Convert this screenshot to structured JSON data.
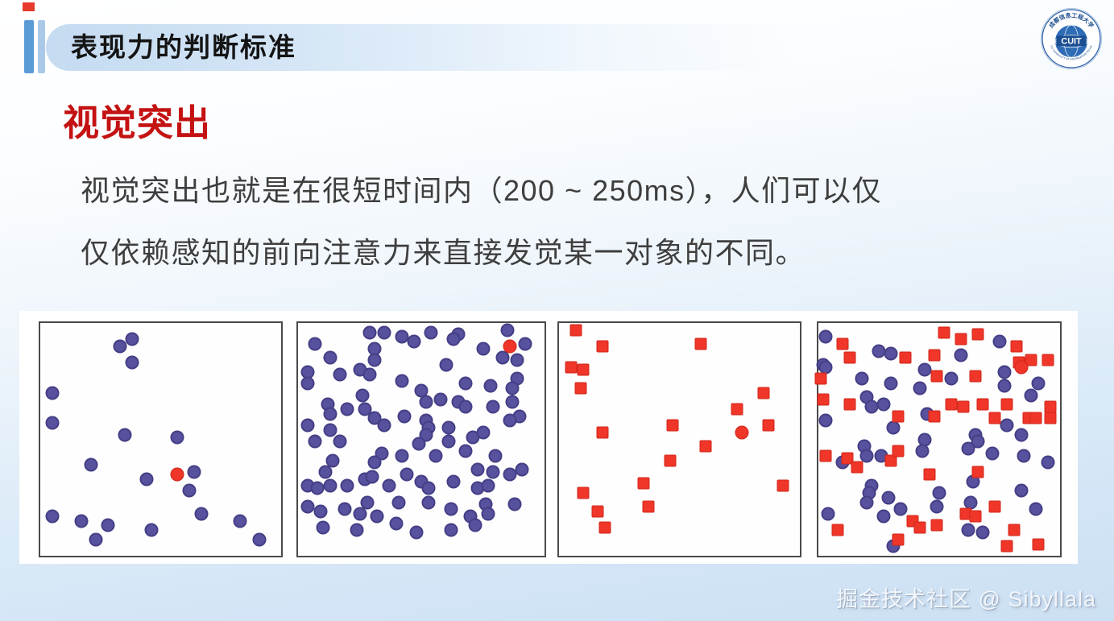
{
  "header": {
    "title": "表现力的判断标准"
  },
  "logo": {
    "abbr": "CUIT",
    "arc_top": "成都信息工程大学",
    "arc_bottom": "CHENGDU UNIVERSITY OF INFORMATION TECHNOLOGY"
  },
  "section": {
    "title": "视觉突出"
  },
  "body": {
    "lines": [
      "视觉突出也就是在很短时间内（200 ~ 250ms），人们可以仅",
      "仅依赖感知的前向注意力来直接发觉某一对象的不同。"
    ]
  },
  "watermark": {
    "text": "掘金技术社区 @ Sibyllala"
  },
  "colors": {
    "accent_bar_dark": "#5b9bd5",
    "accent_bar_light": "#aac9e8",
    "title_red": "#c41212",
    "dot_blue": "#57519e",
    "dot_red": "#ef3629",
    "logo_blue": "#2a5fa8"
  },
  "figure": {
    "panels": [
      {
        "label": "color-popout-sparse",
        "blue_circles": [
          [
            33,
            10
          ],
          [
            38,
            7
          ],
          [
            38,
            17
          ],
          [
            5,
            30
          ],
          [
            5,
            43
          ],
          [
            35,
            48
          ],
          [
            57,
            49
          ],
          [
            21,
            61
          ],
          [
            64,
            64
          ],
          [
            44,
            67
          ],
          [
            62,
            72
          ],
          [
            67,
            82
          ],
          [
            5,
            83
          ],
          [
            17,
            85
          ],
          [
            28,
            87
          ],
          [
            46,
            89
          ],
          [
            23,
            93
          ],
          [
            83,
            85
          ],
          [
            91,
            93
          ]
        ],
        "red_circles": [
          [
            57,
            65
          ]
        ],
        "red_squares": []
      },
      {
        "label": "color-popout-dense",
        "blue_circles": [
          [
            29,
            4
          ],
          [
            35,
            4
          ],
          [
            54,
            4
          ],
          [
            65,
            5
          ],
          [
            85,
            3
          ],
          [
            7,
            9
          ],
          [
            42,
            6
          ],
          [
            47,
            8
          ],
          [
            63,
            7
          ],
          [
            75,
            11
          ],
          [
            92,
            9
          ],
          [
            13,
            15
          ],
          [
            31,
            11
          ],
          [
            31,
            16
          ],
          [
            60,
            18
          ],
          [
            83,
            15
          ],
          [
            89,
            16
          ],
          [
            4,
            21
          ],
          [
            17,
            22
          ],
          [
            25,
            20
          ],
          [
            29,
            22
          ],
          [
            4,
            26
          ],
          [
            42,
            25
          ],
          [
            50,
            29
          ],
          [
            68,
            26
          ],
          [
            78,
            27
          ],
          [
            89,
            24
          ],
          [
            87,
            28
          ],
          [
            26,
            31
          ],
          [
            12,
            35
          ],
          [
            13,
            39
          ],
          [
            20,
            37
          ],
          [
            27,
            37
          ],
          [
            52,
            34
          ],
          [
            58,
            33
          ],
          [
            65,
            34
          ],
          [
            68,
            36
          ],
          [
            79,
            36
          ],
          [
            87,
            34
          ],
          [
            31,
            41
          ],
          [
            35,
            44
          ],
          [
            43,
            40
          ],
          [
            52,
            42
          ],
          [
            53,
            45
          ],
          [
            61,
            45
          ],
          [
            4,
            44
          ],
          [
            13,
            46
          ],
          [
            90,
            40
          ],
          [
            86,
            42
          ],
          [
            7,
            51
          ],
          [
            17,
            51
          ],
          [
            52,
            48
          ],
          [
            49,
            52
          ],
          [
            61,
            51
          ],
          [
            71,
            49
          ],
          [
            75,
            47
          ],
          [
            34,
            56
          ],
          [
            42,
            57
          ],
          [
            56,
            57
          ],
          [
            68,
            55
          ],
          [
            80,
            57
          ],
          [
            14,
            59
          ],
          [
            11,
            64
          ],
          [
            31,
            60
          ],
          [
            91,
            63
          ],
          [
            86,
            65
          ],
          [
            79,
            64
          ],
          [
            73,
            63
          ],
          [
            27,
            67
          ],
          [
            30,
            66
          ],
          [
            44,
            65
          ],
          [
            50,
            68
          ],
          [
            53,
            71
          ],
          [
            63,
            68
          ],
          [
            73,
            71
          ],
          [
            77,
            70
          ],
          [
            4,
            70
          ],
          [
            8,
            71
          ],
          [
            13,
            70
          ],
          [
            20,
            70
          ],
          [
            37,
            70
          ],
          [
            28,
            77
          ],
          [
            41,
            77
          ],
          [
            53,
            77
          ],
          [
            76,
            78
          ],
          [
            88,
            78
          ],
          [
            4,
            79
          ],
          [
            9,
            81
          ],
          [
            19,
            80
          ],
          [
            25,
            82
          ],
          [
            32,
            83
          ],
          [
            62,
            80
          ],
          [
            70,
            83
          ],
          [
            77,
            82
          ],
          [
            10,
            88
          ],
          [
            24,
            89
          ],
          [
            40,
            86
          ],
          [
            48,
            90
          ],
          [
            62,
            89
          ],
          [
            72,
            87
          ]
        ],
        "red_circles": [
          [
            86,
            10
          ]
        ],
        "red_squares": []
      },
      {
        "label": "shape-popout-squares",
        "blue_circles": [],
        "red_circles": [
          [
            76,
            47
          ]
        ],
        "red_squares": [
          [
            7,
            3
          ],
          [
            18,
            10
          ],
          [
            5,
            19
          ],
          [
            10,
            20
          ],
          [
            9,
            28
          ],
          [
            59,
            9
          ],
          [
            85,
            30
          ],
          [
            74,
            37
          ],
          [
            47,
            44
          ],
          [
            87,
            44
          ],
          [
            18,
            47
          ],
          [
            61,
            53
          ],
          [
            46,
            59
          ],
          [
            35,
            69
          ],
          [
            10,
            73
          ],
          [
            37,
            79
          ],
          [
            16,
            81
          ],
          [
            19,
            88
          ],
          [
            93,
            70
          ]
        ]
      },
      {
        "label": "conjunction-search",
        "blue_circles": [
          [
            3,
            6
          ],
          [
            25,
            12
          ],
          [
            30,
            13
          ],
          [
            59,
            14
          ],
          [
            75,
            8
          ],
          [
            2,
            18
          ],
          [
            3,
            19
          ],
          [
            18,
            24
          ],
          [
            30,
            26
          ],
          [
            44,
            20
          ],
          [
            55,
            24
          ],
          [
            77,
            21
          ],
          [
            77,
            27
          ],
          [
            91,
            26
          ],
          [
            88,
            31
          ],
          [
            20,
            32
          ],
          [
            22,
            36
          ],
          [
            27,
            35
          ],
          [
            31,
            45
          ],
          [
            45,
            39
          ],
          [
            42,
            28
          ],
          [
            3,
            42
          ],
          [
            10,
            60
          ],
          [
            19,
            53
          ],
          [
            20,
            57
          ],
          [
            26,
            57
          ],
          [
            44,
            50
          ],
          [
            43,
            55
          ],
          [
            65,
            48
          ],
          [
            66,
            51
          ],
          [
            62,
            54
          ],
          [
            72,
            56
          ],
          [
            84,
            48
          ],
          [
            85,
            57
          ],
          [
            95,
            60
          ],
          [
            22,
            70
          ],
          [
            21,
            73
          ],
          [
            20,
            77
          ],
          [
            29,
            75
          ],
          [
            34,
            80
          ],
          [
            27,
            83
          ],
          [
            4,
            82
          ],
          [
            50,
            73
          ],
          [
            49,
            79
          ],
          [
            63,
            77
          ],
          [
            62,
            89
          ],
          [
            68,
            90
          ],
          [
            84,
            72
          ],
          [
            90,
            80
          ],
          [
            31,
            96
          ],
          [
            64,
            68
          ],
          [
            78,
            44
          ]
        ],
        "red_circles": [
          [
            84,
            19
          ]
        ],
        "red_squares": [
          [
            52,
            4
          ],
          [
            59,
            7
          ],
          [
            66,
            5
          ],
          [
            82,
            10
          ],
          [
            10,
            9
          ],
          [
            13,
            15
          ],
          [
            36,
            15
          ],
          [
            48,
            14
          ],
          [
            49,
            23
          ],
          [
            65,
            23
          ],
          [
            83,
            17
          ],
          [
            88,
            16
          ],
          [
            95,
            16
          ],
          [
            1,
            24
          ],
          [
            2,
            33
          ],
          [
            13,
            35
          ],
          [
            33,
            40
          ],
          [
            48,
            40
          ],
          [
            55,
            35
          ],
          [
            60,
            36
          ],
          [
            68,
            35
          ],
          [
            73,
            41
          ],
          [
            78,
            35
          ],
          [
            87,
            41
          ],
          [
            90,
            41
          ],
          [
            96,
            36
          ],
          [
            96,
            41
          ],
          [
            3,
            57
          ],
          [
            12,
            58
          ],
          [
            16,
            62
          ],
          [
            30,
            59
          ],
          [
            33,
            55
          ],
          [
            46,
            65
          ],
          [
            66,
            64
          ],
          [
            73,
            79
          ],
          [
            61,
            82
          ],
          [
            65,
            83
          ],
          [
            39,
            85
          ],
          [
            42,
            88
          ],
          [
            49,
            87
          ],
          [
            81,
            89
          ],
          [
            91,
            95
          ],
          [
            78,
            96
          ],
          [
            33,
            93
          ],
          [
            8,
            89
          ]
        ]
      }
    ]
  }
}
